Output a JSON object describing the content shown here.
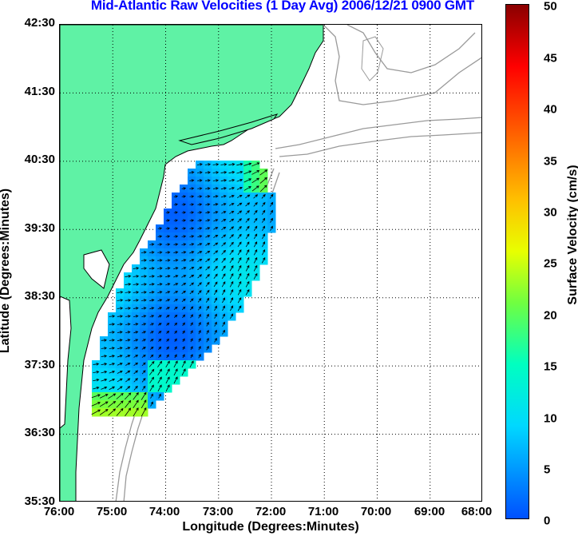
{
  "title": "Mid-Atlantic Raw Velocities (1 Day Avg) 2006/12/21 0900 GMT",
  "xlabel": "Longitude (Degrees:Minutes)",
  "ylabel": "Latitude (Degrees:Minutes)",
  "colorbar_label": "Surface Velocity (cm/s)",
  "lat_ticks": [
    "42:30",
    "41:30",
    "40:30",
    "39:30",
    "38:30",
    "37:30",
    "36:30",
    "35:30"
  ],
  "lon_ticks": [
    "76:00",
    "75:00",
    "74:00",
    "73:00",
    "72:00",
    "71:00",
    "70:00",
    "69:00",
    "68:00"
  ],
  "colorbar_ticks": [
    "50",
    "45",
    "40",
    "35",
    "30",
    "25",
    "20",
    "15",
    "10",
    "5",
    "0"
  ],
  "colors": {
    "land": "#5ff2a5",
    "title": "#0000ff",
    "contour": "#9a9a9a",
    "coast": "#000000"
  },
  "chart_data": {
    "type": "heatmap",
    "title": "Mid-Atlantic Raw Velocities (1 Day Avg) 2006/12/21 0900 GMT",
    "xlabel": "Longitude (Degrees:Minutes)",
    "ylabel": "Latitude (Degrees:Minutes)",
    "xlim": [
      "76:00W",
      "68:00W"
    ],
    "ylim": [
      "35:30N",
      "42:30N"
    ],
    "colorbar": {
      "label": "Surface Velocity (cm/s)",
      "range": [
        0,
        50
      ],
      "colormap": "jet"
    },
    "grid": true,
    "field_description": "Gridded surface current vectors over the Mid-Atlantic Bight continental shelf; mostly 5-12 cm/s (blue/cyan), higher 15-25 cm/s (green/yellow) near the northeast edge and off the mouth of Chesapeake Bay"
  }
}
